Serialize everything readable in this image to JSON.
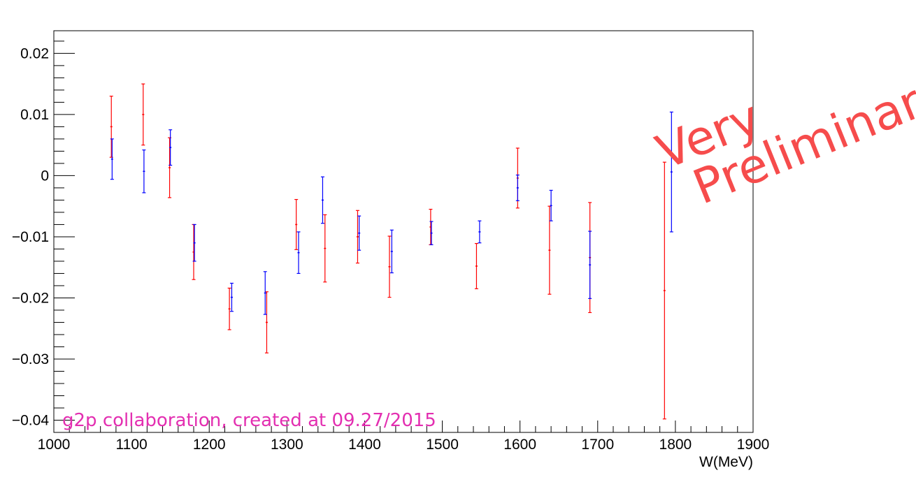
{
  "chart_data": {
    "type": "scatter",
    "xlabel": "W(MeV)",
    "ylabel": "",
    "xlim": [
      1000,
      1900
    ],
    "ylim": [
      -0.042,
      0.0237
    ],
    "x_ticks": [
      1000,
      1100,
      1200,
      1300,
      1400,
      1500,
      1600,
      1700,
      1800,
      1900
    ],
    "x_tick_labels": [
      "1000",
      "1100",
      "1200",
      "1300",
      "1400",
      "1500",
      "1600",
      "1700",
      "1800",
      "1900"
    ],
    "y_ticks": [
      -0.04,
      -0.03,
      -0.02,
      -0.01,
      0,
      0.01,
      0.02
    ],
    "y_tick_labels": [
      "−0.04",
      "−0.03",
      "−0.02",
      "−0.01",
      "0",
      "0.01",
      "0.02"
    ],
    "grid": false,
    "series": [
      {
        "color": "#ff0000",
        "points": [
          {
            "x": 1074,
            "y": 0.008,
            "err": 0.005
          },
          {
            "x": 1115,
            "y": 0.01,
            "err": 0.005
          },
          {
            "x": 1149,
            "y": 0.0013,
            "err": 0.0049
          },
          {
            "x": 1180,
            "y": -0.0125,
            "err": 0.0045
          },
          {
            "x": 1226,
            "y": -0.0218,
            "err": 0.0034
          },
          {
            "x": 1274,
            "y": -0.024,
            "err": 0.005
          },
          {
            "x": 1312,
            "y": -0.008,
            "err": 0.0041
          },
          {
            "x": 1349,
            "y": -0.0119,
            "err": 0.0055
          },
          {
            "x": 1391,
            "y": -0.01,
            "err": 0.0043
          },
          {
            "x": 1432,
            "y": -0.0149,
            "err": 0.005
          },
          {
            "x": 1485,
            "y": -0.0084,
            "err": 0.0029
          },
          {
            "x": 1544,
            "y": -0.0148,
            "err": 0.0037
          },
          {
            "x": 1597,
            "y": -0.0004,
            "err": 0.0049
          },
          {
            "x": 1638,
            "y": -0.0122,
            "err": 0.0072
          },
          {
            "x": 1690,
            "y": -0.0134,
            "err": 0.009
          },
          {
            "x": 1786,
            "y": -0.0188,
            "err": 0.021
          }
        ]
      },
      {
        "color": "#0000ff",
        "points": [
          {
            "x": 1075,
            "y": 0.0027,
            "err": 0.0033
          },
          {
            "x": 1116,
            "y": 0.0007,
            "err": 0.0035
          },
          {
            "x": 1150,
            "y": 0.0046,
            "err": 0.0029
          },
          {
            "x": 1181,
            "y": -0.011,
            "err": 0.003
          },
          {
            "x": 1229,
            "y": -0.0199,
            "err": 0.0023
          },
          {
            "x": 1272,
            "y": -0.0192,
            "err": 0.0035
          },
          {
            "x": 1315,
            "y": -0.0126,
            "err": 0.0034
          },
          {
            "x": 1346,
            "y": -0.004,
            "err": 0.0038
          },
          {
            "x": 1393,
            "y": -0.0094,
            "err": 0.0028
          },
          {
            "x": 1435,
            "y": -0.0124,
            "err": 0.0035
          },
          {
            "x": 1486,
            "y": -0.0094,
            "err": 0.0019
          },
          {
            "x": 1548,
            "y": -0.0092,
            "err": 0.0018
          },
          {
            "x": 1597,
            "y": -0.002,
            "err": 0.0021
          },
          {
            "x": 1640,
            "y": -0.0049,
            "err": 0.0025
          },
          {
            "x": 1690,
            "y": -0.0146,
            "err": 0.0055
          },
          {
            "x": 1795,
            "y": 0.0006,
            "err": 0.0098
          }
        ]
      }
    ]
  },
  "annotations": {
    "credit": "g2p collaboration, created at 09.27/2015",
    "watermark_line1": "Very",
    "watermark_line2": "Preliminary"
  }
}
